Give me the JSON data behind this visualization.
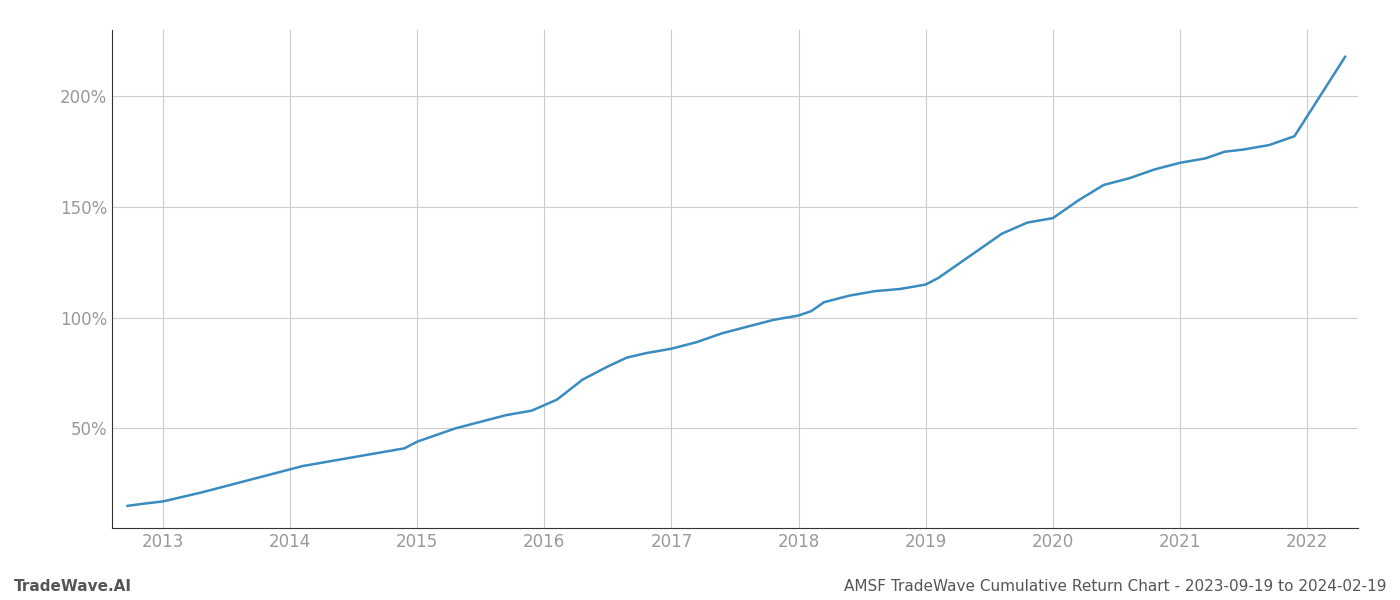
{
  "title": "AMSF TradeWave Cumulative Return Chart - 2023-09-19 to 2024-02-19",
  "watermark": "TradeWave.AI",
  "line_color": "#3a8bbf",
  "background_color": "#ffffff",
  "grid_color": "#cccccc",
  "x_tick_labels": [
    "2013",
    "2014",
    "2015",
    "2016",
    "2017",
    "2018",
    "2019",
    "2020",
    "2021",
    "2022"
  ],
  "x_tick_positions": [
    2013,
    2014,
    2015,
    2016,
    2017,
    2018,
    2019,
    2020,
    2021,
    2022
  ],
  "y_ticks": [
    50,
    100,
    150,
    200
  ],
  "y_tick_labels": [
    "50%",
    "100%",
    "150%",
    "200%"
  ],
  "xlim": [
    2012.6,
    2022.4
  ],
  "ylim": [
    5,
    230
  ],
  "data_x": [
    2012.72,
    2012.85,
    2013.0,
    2013.15,
    2013.3,
    2013.5,
    2013.7,
    2013.9,
    2014.1,
    2014.3,
    2014.5,
    2014.7,
    2014.9,
    2015.0,
    2015.15,
    2015.3,
    2015.5,
    2015.7,
    2015.9,
    2016.1,
    2016.3,
    2016.5,
    2016.65,
    2016.8,
    2017.0,
    2017.2,
    2017.4,
    2017.6,
    2017.8,
    2018.0,
    2018.1,
    2018.2,
    2018.4,
    2018.6,
    2018.8,
    2019.0,
    2019.1,
    2019.2,
    2019.4,
    2019.6,
    2019.8,
    2020.0,
    2020.2,
    2020.4,
    2020.6,
    2020.8,
    2021.0,
    2021.2,
    2021.35,
    2021.5,
    2021.7,
    2021.9,
    2022.1,
    2022.3
  ],
  "data_y": [
    15,
    16,
    17,
    19,
    21,
    24,
    27,
    30,
    33,
    35,
    37,
    39,
    41,
    44,
    47,
    50,
    53,
    56,
    58,
    63,
    72,
    78,
    82,
    84,
    86,
    89,
    93,
    96,
    99,
    101,
    103,
    107,
    110,
    112,
    113,
    115,
    118,
    122,
    130,
    138,
    143,
    145,
    153,
    160,
    163,
    167,
    170,
    172,
    175,
    176,
    178,
    182,
    200,
    218
  ],
  "line_width": 1.8,
  "tick_label_color": "#999999",
  "tick_label_fontsize": 12,
  "footer_fontsize": 11,
  "footer_color": "#555555",
  "spine_color": "#333333"
}
